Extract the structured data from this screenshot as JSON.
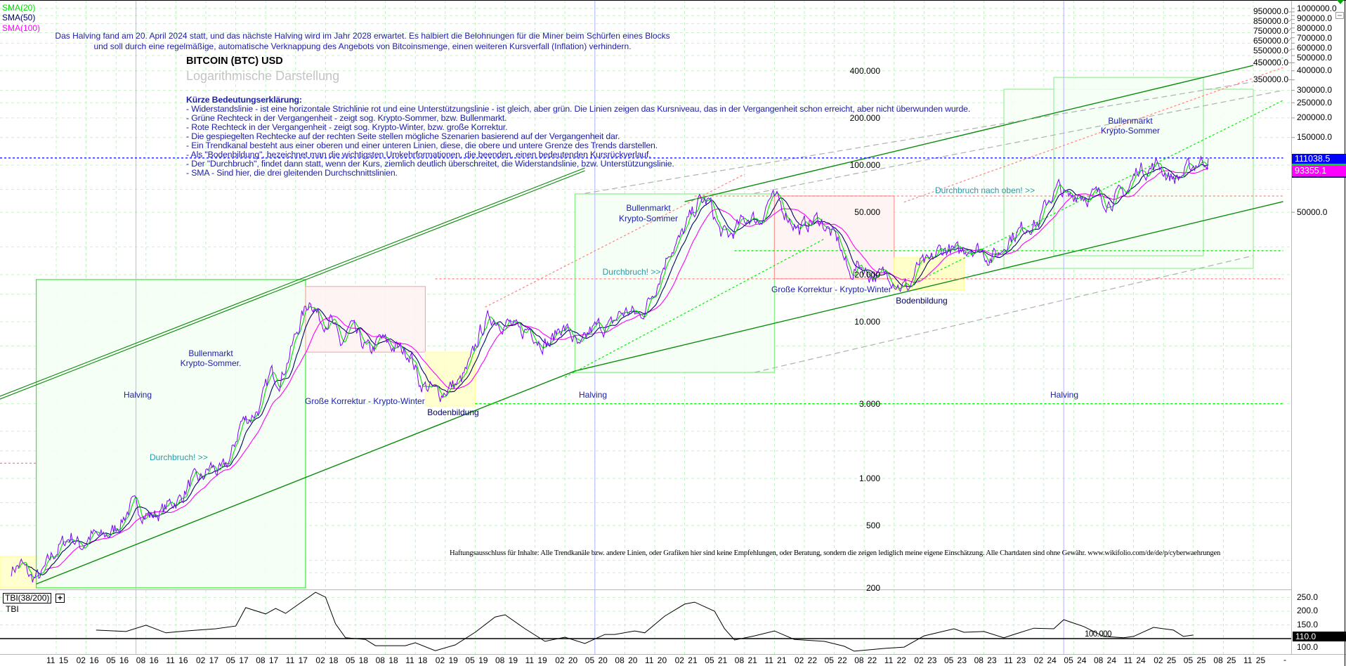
{
  "legend": {
    "sma20": {
      "label": "SMA(20)",
      "color": "#00dd00"
    },
    "sma50": {
      "label": "SMA(50)",
      "color": "#000066"
    },
    "sma100": {
      "label": "SMA(100)",
      "color": "#ff00ff"
    }
  },
  "header": {
    "line1": "Das Halving fand am 20. April 2024 statt, und das nächste Halving wird im Jahr 2028 erwartet. Es halbiert die Belohnungen für die Miner beim Schürfen eines Blocks",
    "line2": "und soll durch eine regelmäßige, automatische Verknappung des Angebots von Bitcoinsmenge, einen weiteren Kursverfall (Inflation) verhindern.",
    "title": "BITCOIN (BTC) USD",
    "subtitle": "Logarithmische Darstellung"
  },
  "explanation": {
    "heading": "Kürze Bedeutungserklärung:",
    "lines": [
      "- Widerstandslinie - ist eine horizontale Strichlinie rot und eine Unterstützungslinie - ist gleich, aber grün. Die Linien zeigen das Kursniveau, das in der Vergangenheit schon erreicht, aber nicht überwunden wurde.",
      "- Grüne Rechteck in der Vergangenheit - zeigt sog. Krypto-Sommer, bzw. Bullenmarkt.",
      " - Rote Rechteck in der Vergangenheit - zeigt sog. Krypto-Winter, bzw. große Korrektur.",
      "- Die gespiegelten Rechtecke auf der rechten Seite stellen mögliche Szenarien basierend auf der Vergangenheit dar.",
      "- Ein Trendkanal besteht aus einer oberen und einer unteren Linien, diese, die obere und untere Grenze des Trends darstellen.",
      " - Als \"Bodenbildung\", bezeichnet man die wichtigsten Umkehrformationen, die beenden, einen bedeutenden Kursrückverlauf.",
      "- Der \"Durchbruch\", findet dann statt, wenn der Kurs, ziemlich deutlich überschreitet, die Widerstandslinie, bzw. Unterstützungslinie.",
      "- SMA - Sind hier, die drei gleitenden Durchschnittslinien."
    ]
  },
  "annotations_text": {
    "halving": "Halving",
    "bull1_a": "Bullenmarkt",
    "bull1_b": "Krypto-Sommer.",
    "breakout": "Durchbruch! >>",
    "correction": "Große Korrektur - Krypto-Winter",
    "bottom": "Bodenbildung",
    "bull2_a": "Bullenmarkt",
    "bull2_b": "Krypto-Sommer",
    "correction2": "Große Korrektur - Krypto-Winter",
    "breakout_up": "Durchbruch nach oben! >>",
    "bull3_a": "Bullenmarkt",
    "bull3_b": "Krypto-Sommer"
  },
  "disclaimer": "Haftungsausschluss für Inhalte: Alle Trendkanäle bzw. andere Linien, oder Grafiken hier sind keine Empfehlungen, oder Beratung, sondern die zeigen lediglich meine eigene Einschätzung. Alle Chartdaten sind ohne Gewähr.  www.wikifolio.com/de/de/p/cyberwaehrungen",
  "price_boxes": {
    "last": {
      "label": "111038.5",
      "color": "#0000ff"
    },
    "sma": {
      "label": "93355.1",
      "color": "#ff00ff"
    }
  },
  "indicator": {
    "title": "TBI(38/200)",
    "expand_icon": "plus-icon",
    "label": "TBI",
    "baseline_label": "100.000",
    "current_label": "110.0",
    "ticks": [
      {
        "value": 250,
        "label": "250.0"
      },
      {
        "value": 200,
        "label": "200.0"
      },
      {
        "value": 150,
        "label": "150.0"
      },
      {
        "value": 100,
        "label": "100.0"
      }
    ]
  },
  "chart_data": {
    "type": "line",
    "y_scale": "log",
    "grid": true,
    "title": "BITCOIN (BTC) USD",
    "subtitle": "Logarithmische Darstellung",
    "price_series": {
      "start": "2015-06",
      "interval": "monthly",
      "color": "#7b00ff",
      "values": [
        263,
        284,
        230,
        236,
        314,
        377,
        430,
        368,
        437,
        416,
        448,
        531,
        673,
        624,
        575,
        609,
        701,
        742,
        963,
        970,
        1190,
        1080,
        1348,
        2286,
        2480,
        2875,
        4703,
        4338,
        6468,
        10233,
        14156,
        10221,
        10397,
        6973,
        9240,
        7494,
        6404,
        7780,
        7037,
        6625,
        6317,
        4017,
        3742,
        3457,
        3854,
        4105,
        5350,
        8574,
        10817,
        10085,
        9630,
        8293,
        9199,
        7569,
        7193,
        9350,
        8599,
        6438,
        8658,
        9461,
        9137,
        11323,
        11680,
        10784,
        13781,
        19713,
        29001,
        33114,
        45137,
        58918,
        57750,
        37332,
        35040,
        41626,
        47166,
        43790,
        61318,
        57005,
        46306,
        38483,
        43193,
        45538,
        37714,
        31792,
        19785,
        23336,
        20050,
        19431,
        20495,
        17168,
        16547,
        23139,
        23147,
        28478,
        29268,
        27219,
        30477,
        29230,
        25931,
        26967,
        34667,
        37712,
        42265,
        42582,
        61198,
        71333,
        60636,
        67491,
        62678,
        64619,
        58969,
        63329,
        70215,
        96449,
        93429,
        102405,
        84373,
        82548,
        94207,
        104638,
        111038.5
      ]
    },
    "last_price": 111038.5,
    "sma_value": 93355.1,
    "x_ticks": [
      "11 15",
      "02 16",
      "05 16",
      "08 16",
      "11 16",
      "02 17",
      "05 17",
      "08 17",
      "11 17",
      "02 18",
      "05 18",
      "08 18",
      "11 18",
      "02 19",
      "05 19",
      "08 19",
      "11 19",
      "02 20",
      "05 20",
      "08 20",
      "11 20",
      "02 21",
      "05 21",
      "08 21",
      "11 21",
      "02 22",
      "05 22",
      "08 22",
      "11 22",
      "02 23",
      "05 23",
      "08 23",
      "11 23",
      "02 24",
      "05 24",
      "08 24",
      "11 24",
      "02 25",
      "05 25",
      "08 25",
      "11 25"
    ],
    "x_end_label": "-",
    "right_axis_ticks": [
      {
        "value": 1000000,
        "label": "1000000.0"
      },
      {
        "value": 950000,
        "label": "950000.0"
      },
      {
        "value": 900000,
        "label": "900000.0"
      },
      {
        "value": 850000,
        "label": "850000.0"
      },
      {
        "value": 800000,
        "label": "800000.0"
      },
      {
        "value": 750000,
        "label": "750000.0"
      },
      {
        "value": 700000,
        "label": "700000.0"
      },
      {
        "value": 650000,
        "label": "650000.0"
      },
      {
        "value": 600000,
        "label": "600000.0"
      },
      {
        "value": 550000,
        "label": "550000.0"
      },
      {
        "value": 500000,
        "label": "500000.0"
      },
      {
        "value": 450000,
        "label": "450000.0"
      },
      {
        "value": 400000,
        "label": "400000.0"
      },
      {
        "value": 350000,
        "label": "350000.0"
      },
      {
        "value": 300000,
        "label": "300000.0"
      },
      {
        "value": 250000,
        "label": "250000.0"
      },
      {
        "value": 200000,
        "label": "200000.0"
      },
      {
        "value": 150000,
        "label": "150000.0"
      },
      {
        "value": 50000,
        "label": "50000.0"
      }
    ],
    "inner_price_labels": [
      {
        "value": 400000,
        "label": "400.000"
      },
      {
        "value": 200000,
        "label": "200.000"
      },
      {
        "value": 100000,
        "label": "100.000"
      },
      {
        "value": 50000,
        "label": "50.000"
      },
      {
        "value": 20000,
        "label": "20.000"
      },
      {
        "value": 10000,
        "label": "10.000"
      },
      {
        "value": 3000,
        "label": "3.000"
      },
      {
        "value": 1000,
        "label": "1.000"
      },
      {
        "value": 500,
        "label": "500"
      },
      {
        "value": 200,
        "label": "200"
      }
    ],
    "halving_dates": [
      "2016-07",
      "2020-05",
      "2024-04"
    ],
    "rectangles": [
      {
        "kind": "bodenbildung",
        "from": "2015-05",
        "to": "2015-11",
        "low": 200,
        "high": 318,
        "fill": "#ffffc8",
        "stroke": "#ffff99"
      },
      {
        "kind": "bullenmarkt",
        "from": "2015-09",
        "to": "2017-12",
        "low": 200,
        "high": 18600,
        "fill": "#f4fff4",
        "stroke": "#33ee33"
      },
      {
        "kind": "korrektur",
        "from": "2017-12",
        "to": "2018-12",
        "low": 6400,
        "high": 16800,
        "fill": "#fff2f2",
        "stroke": "#ffaaaa"
      },
      {
        "kind": "bodenbildung",
        "from": "2018-12",
        "to": "2019-05",
        "low": 2900,
        "high": 6400,
        "fill": "#ffffc8",
        "stroke": "#ffff99"
      },
      {
        "kind": "bullenmarkt",
        "from": "2020-03",
        "to": "2021-11",
        "low": 4750,
        "high": 65500,
        "fill": "#f4fff4",
        "stroke": "#88ee88"
      },
      {
        "kind": "korrektur",
        "from": "2021-11",
        "to": "2022-11",
        "low": 18800,
        "high": 63500,
        "fill": "#fff2f2",
        "stroke": "#ff9999"
      },
      {
        "kind": "bodenbildung",
        "from": "2022-11",
        "to": "2023-06",
        "low": 15900,
        "high": 25600,
        "fill": "#ffffc0",
        "stroke": "#ffff88"
      },
      {
        "kind": "szenario",
        "from": "2023-10",
        "to": "2025-11",
        "low": 21900,
        "high": 305000,
        "fill": "#f6fff6",
        "stroke": "#99ee99"
      },
      {
        "kind": "szenario",
        "from": "2024-03",
        "to": "2025-06",
        "low": 26400,
        "high": 363000,
        "fill": "#f4fff4",
        "stroke": "#99ee99"
      }
    ],
    "trend_lines": [
      {
        "from": [
          "2015-05",
          3210
        ],
        "to": [
          "2020-04",
          94000
        ],
        "color": "#0a8a0a",
        "style": "double"
      },
      {
        "from": [
          "2015-09",
          212
        ],
        "to": [
          "2020-03",
          4850
        ],
        "color": "#0a8a0a",
        "style": "solid"
      },
      {
        "from": [
          "2020-03",
          4850
        ],
        "to": [
          "2026-02",
          58500
        ],
        "color": "#0a8a0a",
        "style": "solid"
      },
      {
        "from": [
          "2021-02",
          58400
        ],
        "to": [
          "2026-02",
          481000
        ],
        "color": "#0a8a0a",
        "style": "solid"
      },
      {
        "from": [
          "2020-02",
          4430
        ],
        "to": [
          "2022-04",
          33800
        ],
        "color": "#00ee00",
        "style": "dotted"
      },
      {
        "from": [
          "2023-01",
          17700
        ],
        "to": [
          "2026-02",
          259000
        ],
        "color": "#00ee00",
        "style": "dotted"
      },
      {
        "from": [
          "2019-06",
          12400
        ],
        "to": [
          "2021-08",
          87500
        ],
        "color": "#ff8080",
        "style": "dotted"
      },
      {
        "from": [
          "2022-12",
          58000
        ],
        "to": [
          "2026-02",
          420000
        ],
        "color": "#ff8080",
        "style": "dotted"
      },
      {
        "from": [
          "2020-04",
          66000
        ],
        "to": [
          "2026-01",
          357000
        ],
        "color": "#b0b0b0",
        "style": "dashed"
      },
      {
        "from": [
          "2021-09",
          66000
        ],
        "to": [
          "2026-02",
          300000
        ],
        "color": "#b0b0b0",
        "style": "dashed"
      },
      {
        "from": [
          "2021-09",
          4750
        ],
        "to": [
          "2025-11",
          26400
        ],
        "color": "#b0b0b0",
        "style": "dashed"
      }
    ],
    "horizontal_lines": [
      {
        "price": 111038.5,
        "from": "2015-05",
        "to": "2026-02",
        "color": "#0000ff",
        "style": "dotted"
      },
      {
        "price": 63500,
        "from": "2021-03",
        "to": "2026-02",
        "color": "#ff8080",
        "style": "dotted"
      },
      {
        "price": 28400,
        "from": "2021-07",
        "to": "2026-02",
        "color": "#00dd00",
        "style": "dotted"
      },
      {
        "price": 18800,
        "from": "2019-01",
        "to": "2026-02",
        "color": "#ff8080",
        "style": "dotted"
      },
      {
        "price": 3000,
        "from": "2019-05",
        "to": "2026-02",
        "color": "#00ee00",
        "style": "dotted"
      },
      {
        "price": 1250,
        "from": "2015-05",
        "to": "2015-09",
        "color": "#ff8080",
        "style": "dotted"
      }
    ],
    "tbi_series": [
      [
        "2016-03",
        131
      ],
      [
        "2016-06",
        126
      ],
      [
        "2016-08",
        149
      ],
      [
        "2016-10",
        121
      ],
      [
        "2016-12",
        128
      ],
      [
        "2017-03",
        136
      ],
      [
        "2017-05",
        146
      ],
      [
        "2017-06",
        213
      ],
      [
        "2017-08",
        190
      ],
      [
        "2017-09",
        210
      ],
      [
        "2017-10",
        192
      ],
      [
        "2017-11",
        218
      ],
      [
        "2018-01",
        269
      ],
      [
        "2018-02",
        251
      ],
      [
        "2018-03",
        154
      ],
      [
        "2018-04",
        103
      ],
      [
        "2018-06",
        97
      ],
      [
        "2018-07",
        74
      ],
      [
        "2018-10",
        74
      ],
      [
        "2018-11",
        85
      ],
      [
        "2019-01",
        56
      ],
      [
        "2019-03",
        77
      ],
      [
        "2019-05",
        123
      ],
      [
        "2019-07",
        179
      ],
      [
        "2019-08",
        187
      ],
      [
        "2019-10",
        136
      ],
      [
        "2019-12",
        90
      ],
      [
        "2020-02",
        105
      ],
      [
        "2020-04",
        82
      ],
      [
        "2020-06",
        115
      ],
      [
        "2020-07",
        115
      ],
      [
        "2020-09",
        128
      ],
      [
        "2020-10",
        121
      ],
      [
        "2020-12",
        182
      ],
      [
        "2021-02",
        226
      ],
      [
        "2021-03",
        233
      ],
      [
        "2021-05",
        200
      ],
      [
        "2021-06",
        136
      ],
      [
        "2021-07",
        95
      ],
      [
        "2021-09",
        110
      ],
      [
        "2021-11",
        128
      ],
      [
        "2022-01",
        97
      ],
      [
        "2022-04",
        90
      ],
      [
        "2022-06",
        72
      ],
      [
        "2022-07",
        54
      ],
      [
        "2022-10",
        64
      ],
      [
        "2022-12",
        69
      ],
      [
        "2023-02",
        110
      ],
      [
        "2023-05",
        136
      ],
      [
        "2023-06",
        123
      ],
      [
        "2023-08",
        126
      ],
      [
        "2023-10",
        103
      ],
      [
        "2023-11",
        115
      ],
      [
        "2024-01",
        138
      ],
      [
        "2024-03",
        136
      ],
      [
        "2024-04",
        169
      ],
      [
        "2024-06",
        144
      ],
      [
        "2024-08",
        108
      ],
      [
        "2024-10",
        103
      ],
      [
        "2024-11",
        108
      ],
      [
        "2025-01",
        141
      ],
      [
        "2025-03",
        131
      ],
      [
        "2025-04",
        108
      ],
      [
        "2025-05",
        113
      ]
    ],
    "tbi_baseline": 100
  }
}
